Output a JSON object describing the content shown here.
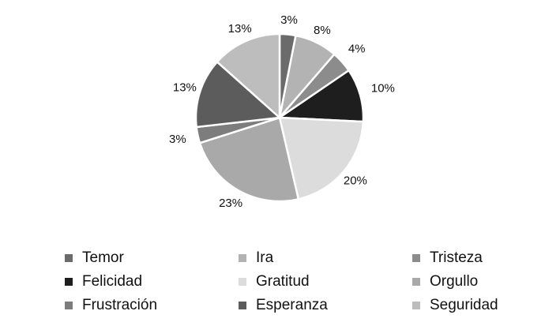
{
  "chart_data": {
    "type": "pie",
    "start_angle_deg": 0,
    "direction": "clockwise",
    "legend_position": "bottom",
    "slices": [
      {
        "name": "Temor",
        "value": 3,
        "label": "3%",
        "color": "#6b6b6b"
      },
      {
        "name": "Ira",
        "value": 8,
        "label": "8%",
        "color": "#b3b3b3"
      },
      {
        "name": "Tristeza",
        "value": 4,
        "label": "4%",
        "color": "#8c8c8c"
      },
      {
        "name": "Felicidad",
        "value": 10,
        "label": "10%",
        "color": "#1e1e1e"
      },
      {
        "name": "Gratitud",
        "value": 20,
        "label": "20%",
        "color": "#dcdcdc"
      },
      {
        "name": "Orgullo",
        "value": 23,
        "label": "23%",
        "color": "#a9a9a9"
      },
      {
        "name": "Frustración",
        "value": 3,
        "label": "3%",
        "color": "#7d7d7d"
      },
      {
        "name": "Esperanza",
        "value": 13,
        "label": "13%",
        "color": "#5c5c5c"
      },
      {
        "name": "Seguridad",
        "value": 13,
        "label": "13%",
        "color": "#bdbdbd"
      }
    ]
  }
}
